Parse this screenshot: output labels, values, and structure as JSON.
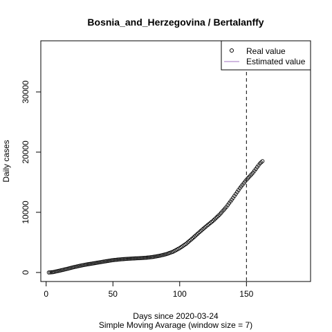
{
  "chart_data": {
    "type": "scatter",
    "title": "Bosnia_and_Herzegovina / Bertalanffy",
    "xlabel": "Days since 2020-03-24",
    "xlabel_sub": "Simple Moving Avarage (window size = 7)",
    "ylabel": "Daily cases",
    "xlim": [
      -4,
      198
    ],
    "ylim": [
      -1500,
      38500
    ],
    "xticks": [
      0,
      50,
      100,
      150
    ],
    "yticks": [
      0,
      10000,
      20000,
      30000
    ],
    "xtick_labels": [
      "0",
      "50",
      "100",
      "150"
    ],
    "ytick_labels": [
      "0",
      "10000",
      "20000",
      "30000"
    ],
    "vline_x": 150,
    "legend": {
      "position": "top-right",
      "entries": [
        {
          "label": "Real value",
          "marker": "circle",
          "color": "#000000"
        },
        {
          "label": "Estimated value",
          "marker": "line",
          "color": "#a070c0"
        }
      ]
    },
    "series": [
      {
        "name": "Real value",
        "x_start": 2,
        "x_end": 162,
        "x_step": 1,
        "anchors": [
          [
            2,
            0
          ],
          [
            5,
            50
          ],
          [
            10,
            300
          ],
          [
            15,
            560
          ],
          [
            20,
            850
          ],
          [
            25,
            1100
          ],
          [
            30,
            1320
          ],
          [
            35,
            1500
          ],
          [
            40,
            1690
          ],
          [
            45,
            1880
          ],
          [
            50,
            2050
          ],
          [
            55,
            2170
          ],
          [
            60,
            2260
          ],
          [
            65,
            2330
          ],
          [
            70,
            2380
          ],
          [
            75,
            2450
          ],
          [
            80,
            2580
          ],
          [
            85,
            2780
          ],
          [
            90,
            3050
          ],
          [
            95,
            3450
          ],
          [
            100,
            4050
          ],
          [
            105,
            4800
          ],
          [
            110,
            5750
          ],
          [
            115,
            6750
          ],
          [
            120,
            7700
          ],
          [
            125,
            8600
          ],
          [
            130,
            9650
          ],
          [
            135,
            10900
          ],
          [
            140,
            12400
          ],
          [
            145,
            14000
          ],
          [
            150,
            15400
          ],
          [
            155,
            16600
          ],
          [
            160,
            18100
          ],
          [
            162,
            18500
          ]
        ]
      }
    ]
  }
}
